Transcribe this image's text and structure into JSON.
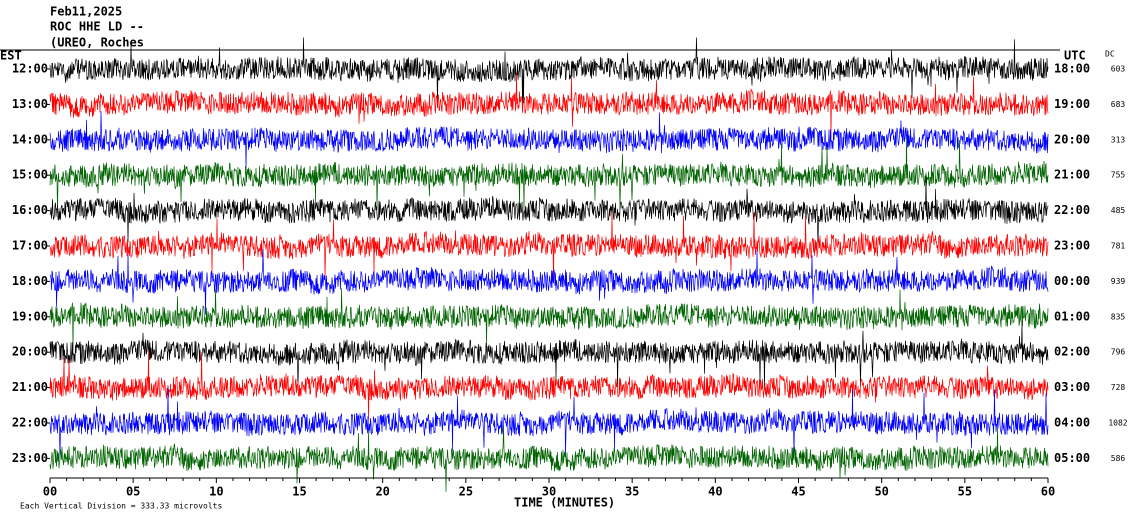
{
  "header": {
    "date": "Feb11,2025",
    "station": "ROC HHE LD --",
    "location": "(UREO, Roches"
  },
  "left_axis": {
    "label": "EST",
    "ticks": [
      "12:00",
      "13:00",
      "14:00",
      "15:00",
      "16:00",
      "17:00",
      "18:00",
      "19:00",
      "20:00",
      "21:00",
      "22:00",
      "23:00"
    ]
  },
  "right_axis": {
    "label": "UTC",
    "ticks": [
      "18:00",
      "19:00",
      "20:00",
      "21:00",
      "22:00",
      "23:00",
      "00:00",
      "01:00",
      "02:00",
      "03:00",
      "04:00",
      "05:00"
    ]
  },
  "dc": {
    "label": "DC",
    "values": [
      603,
      683,
      313,
      755,
      485,
      781,
      939,
      835,
      796,
      728,
      1082,
      586
    ]
  },
  "x_axis": {
    "title": "TIME (MINUTES)",
    "ticks": [
      "00",
      "05",
      "10",
      "15",
      "20",
      "25",
      "30",
      "35",
      "40",
      "45",
      "50",
      "55",
      "60"
    ]
  },
  "footer": "Each Vertical Division =  333.33 microvolts"
}
